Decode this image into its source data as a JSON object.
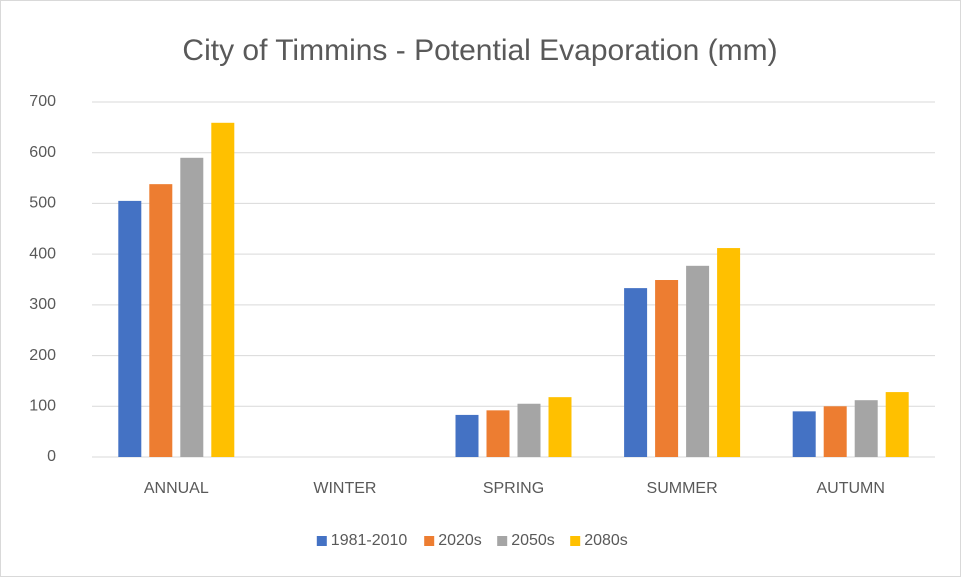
{
  "chart_data": {
    "type": "bar",
    "title": "City of Timmins - Potential Evaporation (mm)",
    "categories": [
      "ANNUAL",
      "WINTER",
      "SPRING",
      "SUMMER",
      "AUTUMN"
    ],
    "series": [
      {
        "name": "1981-2010",
        "color": "#4472c4",
        "values": [
          505,
          0,
          83,
          333,
          90
        ]
      },
      {
        "name": "2020s",
        "color": "#ed7d31",
        "values": [
          538,
          0,
          92,
          349,
          100
        ]
      },
      {
        "name": "2050s",
        "color": "#a5a5a5",
        "values": [
          590,
          0,
          105,
          377,
          112
        ]
      },
      {
        "name": "2080s",
        "color": "#ffc000",
        "values": [
          659,
          0,
          118,
          412,
          128
        ]
      }
    ],
    "ylim": [
      0,
      700
    ],
    "yticks": [
      0,
      100,
      200,
      300,
      400,
      500,
      600,
      700
    ],
    "grid": true,
    "legend": "bottom"
  }
}
